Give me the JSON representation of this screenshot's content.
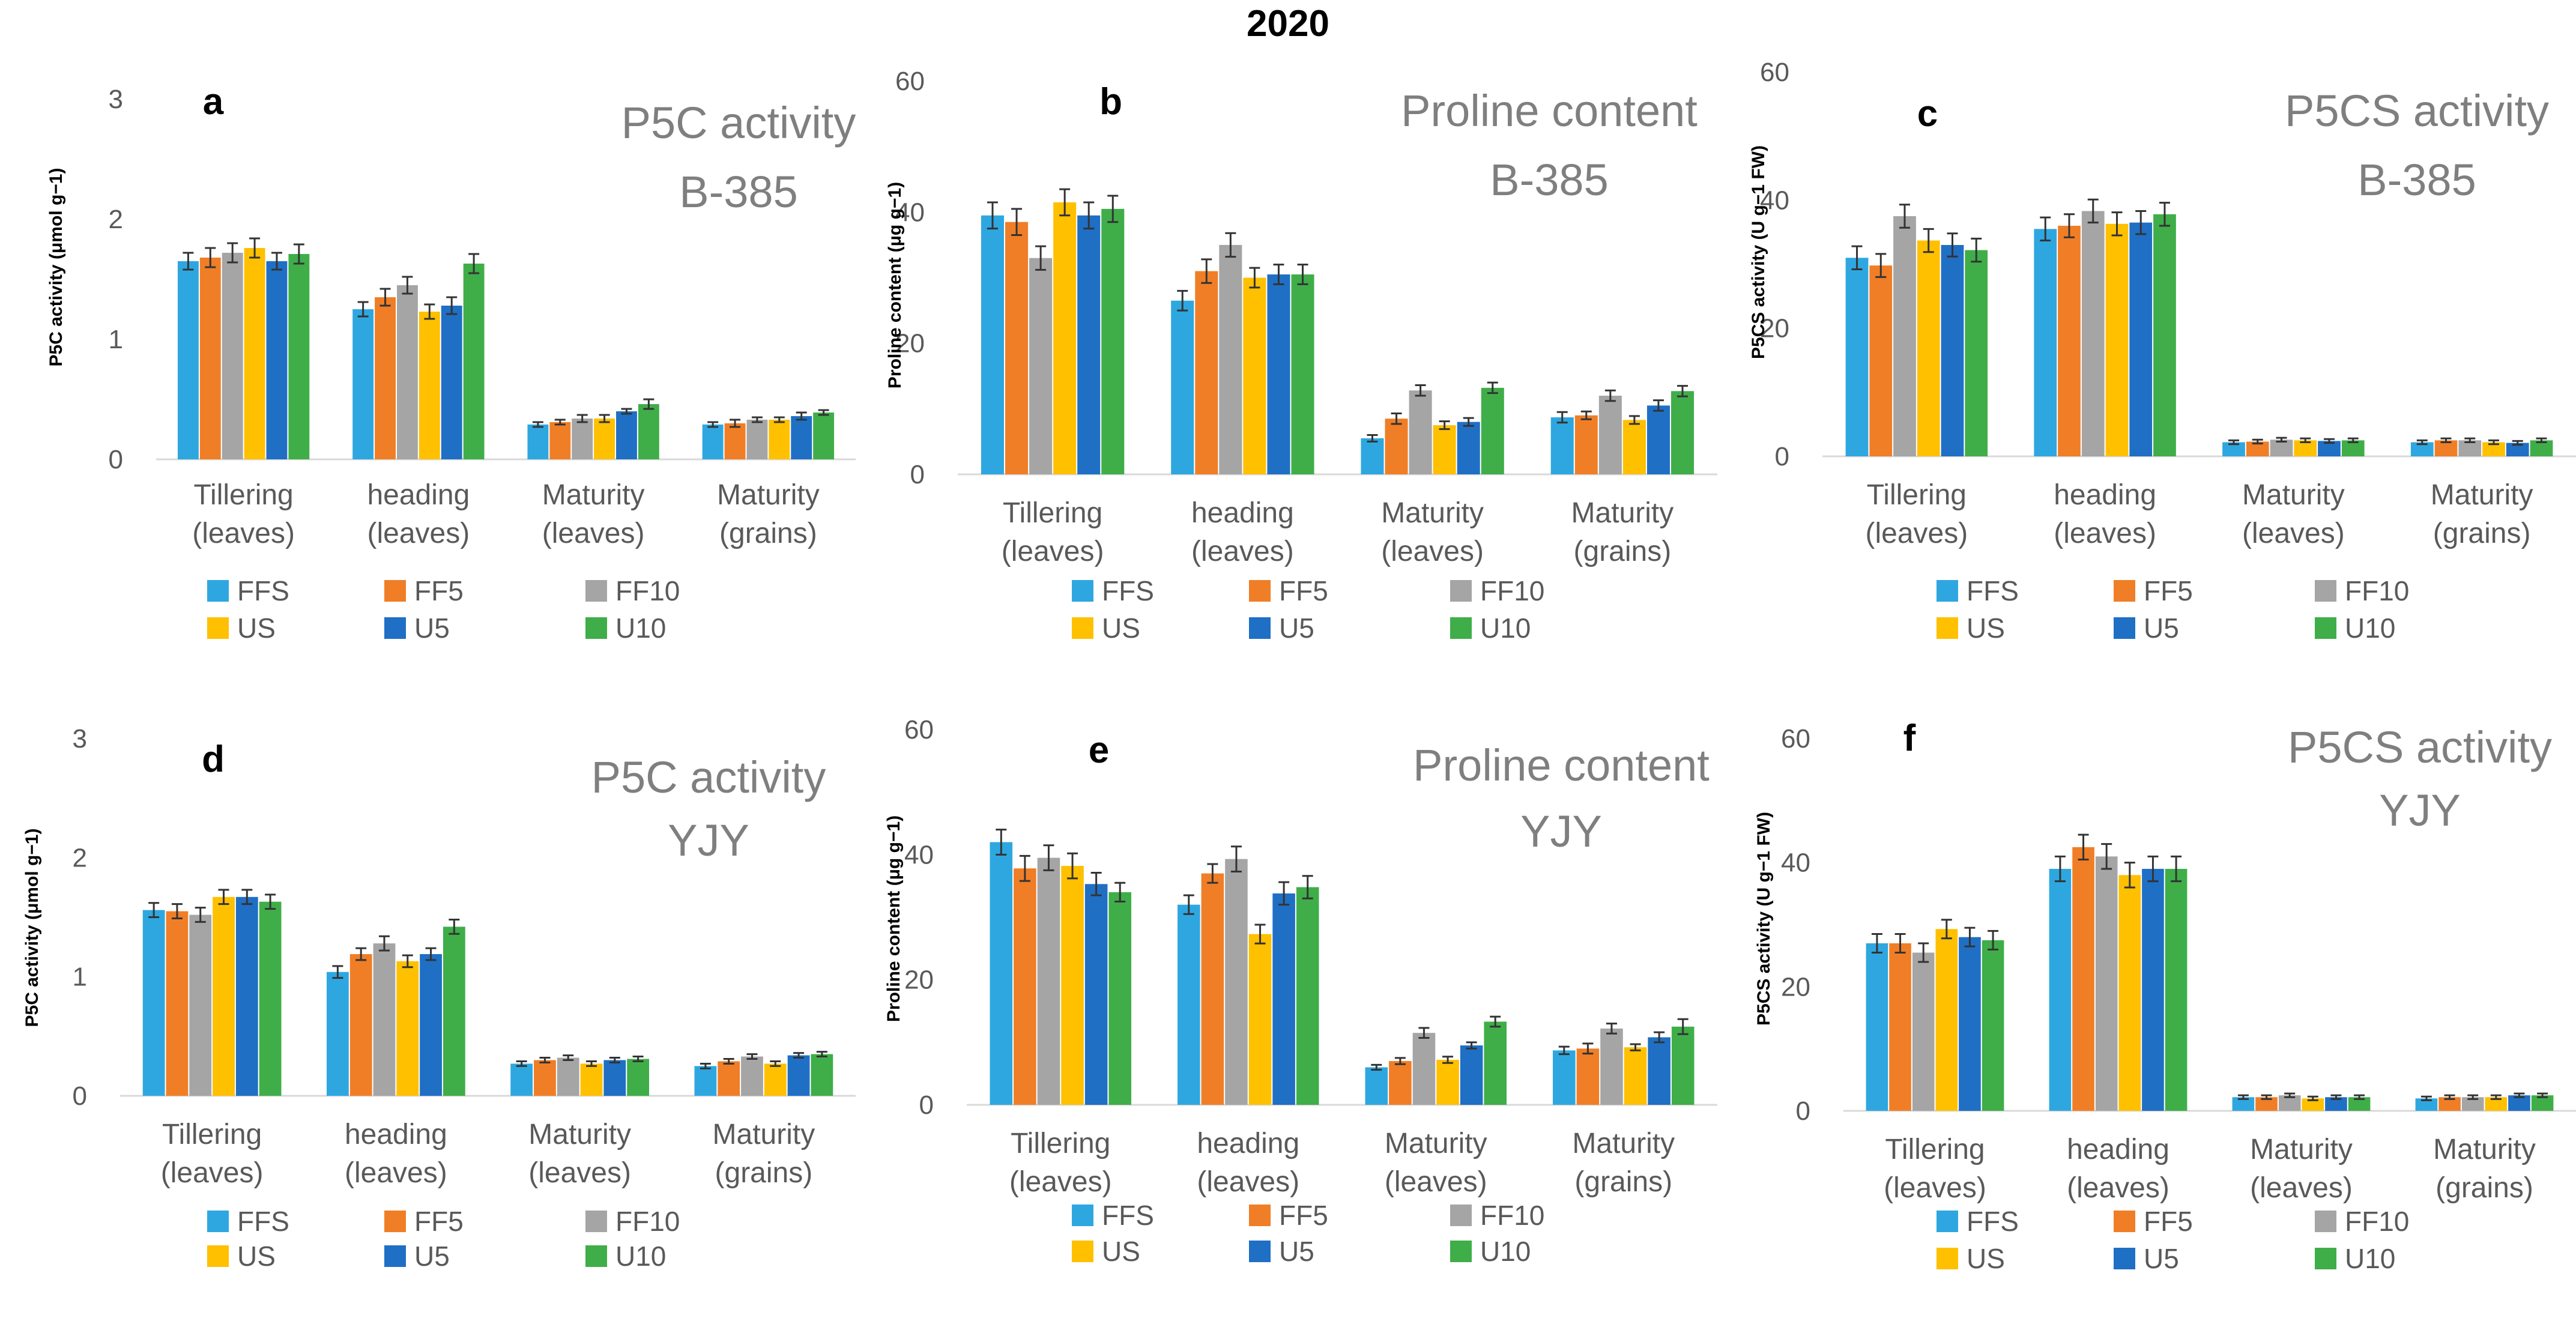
{
  "figure": {
    "title": "2020"
  },
  "series_colors": {
    "FFS": "#2EA7E0",
    "FF5": "#F07E26",
    "FF10": "#A5A5A5",
    "US": "#FFC000",
    "U5": "#1F6FC5",
    "U10": "#3FAE49"
  },
  "chart_data": [
    {
      "id": "a",
      "type": "bar",
      "panel_label": "a",
      "title_lines": [
        "P5C activity",
        "B-385"
      ],
      "ylabel": "P5C activity (μmol g−1)",
      "ylim": [
        0,
        3
      ],
      "yticks": [
        "0",
        "1",
        "2",
        "3"
      ],
      "category_lines": [
        [
          "Tillering",
          "(leaves)"
        ],
        [
          "heading",
          "(leaves)"
        ],
        [
          "Maturity",
          "(leaves)"
        ],
        [
          "Maturity",
          "(grains)"
        ]
      ],
      "series": [
        {
          "name": "FFS",
          "values": [
            1.65,
            1.25,
            0.29,
            0.29
          ],
          "errors": [
            0.07,
            0.06,
            0.02,
            0.02
          ]
        },
        {
          "name": "FF5",
          "values": [
            1.68,
            1.35,
            0.31,
            0.3
          ],
          "errors": [
            0.08,
            0.07,
            0.02,
            0.03
          ]
        },
        {
          "name": "FF10",
          "values": [
            1.72,
            1.45,
            0.34,
            0.33
          ],
          "errors": [
            0.08,
            0.07,
            0.03,
            0.02
          ]
        },
        {
          "name": "US",
          "values": [
            1.76,
            1.23,
            0.34,
            0.33
          ],
          "errors": [
            0.08,
            0.06,
            0.03,
            0.02
          ]
        },
        {
          "name": "U5",
          "values": [
            1.65,
            1.28,
            0.4,
            0.36
          ],
          "errors": [
            0.07,
            0.07,
            0.02,
            0.03
          ]
        },
        {
          "name": "U10",
          "values": [
            1.71,
            1.63,
            0.46,
            0.39
          ],
          "errors": [
            0.08,
            0.08,
            0.04,
            0.02
          ]
        }
      ]
    },
    {
      "id": "b",
      "type": "bar",
      "panel_label": "b",
      "title_lines": [
        "Proline content",
        "B-385"
      ],
      "ylabel": "Proline content (μg g−1)",
      "ylim": [
        0,
        60
      ],
      "yticks": [
        "0",
        "20",
        "40",
        "60"
      ],
      "category_lines": [
        [
          "Tillering",
          "(leaves)"
        ],
        [
          "heading",
          "(leaves)"
        ],
        [
          "Maturity",
          "(leaves)"
        ],
        [
          "Maturity",
          "(grains)"
        ]
      ],
      "series": [
        {
          "name": "FFS",
          "values": [
            39.5,
            26.5,
            5.5,
            8.7
          ],
          "errors": [
            2.0,
            1.5,
            0.5,
            0.8
          ]
        },
        {
          "name": "FF5",
          "values": [
            38.5,
            31.0,
            8.5,
            9.0
          ],
          "errors": [
            2.0,
            1.8,
            0.8,
            0.6
          ]
        },
        {
          "name": "FF10",
          "values": [
            33.0,
            35.0,
            12.8,
            12.0
          ],
          "errors": [
            1.8,
            1.8,
            0.8,
            0.8
          ]
        },
        {
          "name": "US",
          "values": [
            41.5,
            30.0,
            7.5,
            8.3
          ],
          "errors": [
            2.0,
            1.5,
            0.6,
            0.6
          ]
        },
        {
          "name": "U5",
          "values": [
            39.5,
            30.5,
            8.0,
            10.5
          ],
          "errors": [
            2.0,
            1.5,
            0.6,
            0.8
          ]
        },
        {
          "name": "U10",
          "values": [
            40.5,
            30.5,
            13.2,
            12.7
          ],
          "errors": [
            2.0,
            1.5,
            0.8,
            0.8
          ]
        }
      ]
    },
    {
      "id": "c",
      "type": "bar",
      "panel_label": "c",
      "title_lines": [
        "P5CS activity",
        "B-385"
      ],
      "ylabel": "P5CS activity (U g−1 FW)",
      "ylim": [
        0,
        60
      ],
      "yticks": [
        "0",
        "20",
        "40",
        "60"
      ],
      "category_lines": [
        [
          "Tillering",
          "(leaves)"
        ],
        [
          "heading",
          "(leaves)"
        ],
        [
          "Maturity",
          "(leaves)"
        ],
        [
          "Maturity",
          "(grains)"
        ]
      ],
      "series": [
        {
          "name": "FFS",
          "values": [
            31.0,
            35.5,
            2.2,
            2.2
          ],
          "errors": [
            1.8,
            1.8,
            0.3,
            0.3
          ]
        },
        {
          "name": "FF5",
          "values": [
            29.8,
            36.0,
            2.3,
            2.5
          ],
          "errors": [
            1.8,
            1.8,
            0.3,
            0.3
          ]
        },
        {
          "name": "FF10",
          "values": [
            37.5,
            38.3,
            2.6,
            2.5
          ],
          "errors": [
            1.8,
            1.8,
            0.3,
            0.3
          ]
        },
        {
          "name": "US",
          "values": [
            33.7,
            36.3,
            2.5,
            2.2
          ],
          "errors": [
            1.8,
            1.8,
            0.3,
            0.3
          ]
        },
        {
          "name": "U5",
          "values": [
            33.0,
            36.5,
            2.4,
            2.1
          ],
          "errors": [
            1.8,
            1.8,
            0.3,
            0.3
          ]
        },
        {
          "name": "U10",
          "values": [
            32.2,
            37.8,
            2.5,
            2.5
          ],
          "errors": [
            1.8,
            1.8,
            0.3,
            0.3
          ]
        }
      ]
    },
    {
      "id": "d",
      "type": "bar",
      "panel_label": "d",
      "title_lines": [
        "P5C activity",
        "YJY"
      ],
      "ylabel": "P5C activity (μmol g−1)",
      "ylim": [
        0,
        3
      ],
      "yticks": [
        "0",
        "1",
        "2",
        "3"
      ],
      "category_lines": [
        [
          "Tillering",
          "(leaves)"
        ],
        [
          "heading",
          "(leaves)"
        ],
        [
          "Maturity",
          "(leaves)"
        ],
        [
          "Maturity",
          "(grains)"
        ]
      ],
      "series": [
        {
          "name": "FFS",
          "values": [
            1.56,
            1.04,
            0.27,
            0.25
          ],
          "errors": [
            0.06,
            0.05,
            0.02,
            0.02
          ]
        },
        {
          "name": "FF5",
          "values": [
            1.55,
            1.19,
            0.3,
            0.29
          ],
          "errors": [
            0.06,
            0.05,
            0.02,
            0.02
          ]
        },
        {
          "name": "FF10",
          "values": [
            1.52,
            1.28,
            0.32,
            0.33
          ],
          "errors": [
            0.06,
            0.06,
            0.02,
            0.02
          ]
        },
        {
          "name": "US",
          "values": [
            1.67,
            1.13,
            0.27,
            0.27
          ],
          "errors": [
            0.06,
            0.05,
            0.02,
            0.02
          ]
        },
        {
          "name": "U5",
          "values": [
            1.67,
            1.19,
            0.3,
            0.34
          ],
          "errors": [
            0.06,
            0.05,
            0.02,
            0.02
          ]
        },
        {
          "name": "U10",
          "values": [
            1.63,
            1.42,
            0.31,
            0.35
          ],
          "errors": [
            0.06,
            0.06,
            0.02,
            0.02
          ]
        }
      ]
    },
    {
      "id": "e",
      "type": "bar",
      "panel_label": "e",
      "title_lines": [
        "Proline content",
        "YJY"
      ],
      "ylabel": "Proline content (μg g−1)",
      "ylim": [
        0,
        60
      ],
      "yticks": [
        "0",
        "20",
        "40",
        "60"
      ],
      "category_lines": [
        [
          "Tillering",
          "(leaves)"
        ],
        [
          "heading",
          "(leaves)"
        ],
        [
          "Maturity",
          "(leaves)"
        ],
        [
          "Maturity",
          "(grains)"
        ]
      ],
      "series": [
        {
          "name": "FFS",
          "values": [
            42.0,
            32.0,
            6.0,
            8.7
          ],
          "errors": [
            2.0,
            1.5,
            0.4,
            0.6
          ]
        },
        {
          "name": "FF5",
          "values": [
            37.8,
            37.0,
            7.0,
            9.0
          ],
          "errors": [
            2.0,
            1.5,
            0.5,
            0.8
          ]
        },
        {
          "name": "FF10",
          "values": [
            39.5,
            39.3,
            11.5,
            12.2
          ],
          "errors": [
            2.0,
            2.0,
            0.8,
            0.8
          ]
        },
        {
          "name": "US",
          "values": [
            38.2,
            27.3,
            7.2,
            9.2
          ],
          "errors": [
            2.0,
            1.5,
            0.5,
            0.5
          ]
        },
        {
          "name": "U5",
          "values": [
            35.3,
            33.8,
            9.5,
            10.8
          ],
          "errors": [
            1.8,
            1.8,
            0.5,
            0.8
          ]
        },
        {
          "name": "U10",
          "values": [
            34.0,
            34.8,
            13.3,
            12.5
          ],
          "errors": [
            1.5,
            1.8,
            0.8,
            1.2
          ]
        }
      ]
    },
    {
      "id": "f",
      "type": "bar",
      "panel_label": "f",
      "title_lines": [
        "P5CS activity",
        "YJY"
      ],
      "ylabel": "P5CS activity (U g−1 FW)",
      "ylim": [
        0,
        60
      ],
      "yticks": [
        "0",
        "20",
        "40",
        "60"
      ],
      "category_lines": [
        [
          "Tillering",
          "(leaves)"
        ],
        [
          "heading",
          "(leaves)"
        ],
        [
          "Maturity",
          "(leaves)"
        ],
        [
          "Maturity",
          "(grains)"
        ]
      ],
      "series": [
        {
          "name": "FFS",
          "values": [
            27.0,
            39.0,
            2.2,
            2.0
          ],
          "errors": [
            1.5,
            2.0,
            0.3,
            0.3
          ]
        },
        {
          "name": "FF5",
          "values": [
            27.0,
            42.5,
            2.2,
            2.2
          ],
          "errors": [
            1.5,
            2.0,
            0.3,
            0.3
          ]
        },
        {
          "name": "FF10",
          "values": [
            25.5,
            41.0,
            2.5,
            2.2
          ],
          "errors": [
            1.5,
            2.0,
            0.3,
            0.3
          ]
        },
        {
          "name": "US",
          "values": [
            29.3,
            38.0,
            2.0,
            2.2
          ],
          "errors": [
            1.5,
            2.0,
            0.3,
            0.3
          ]
        },
        {
          "name": "U5",
          "values": [
            28.0,
            39.0,
            2.2,
            2.5
          ],
          "errors": [
            1.5,
            2.0,
            0.3,
            0.3
          ]
        },
        {
          "name": "U10",
          "values": [
            27.5,
            39.0,
            2.2,
            2.5
          ],
          "errors": [
            1.5,
            2.0,
            0.3,
            0.3
          ]
        }
      ]
    }
  ]
}
